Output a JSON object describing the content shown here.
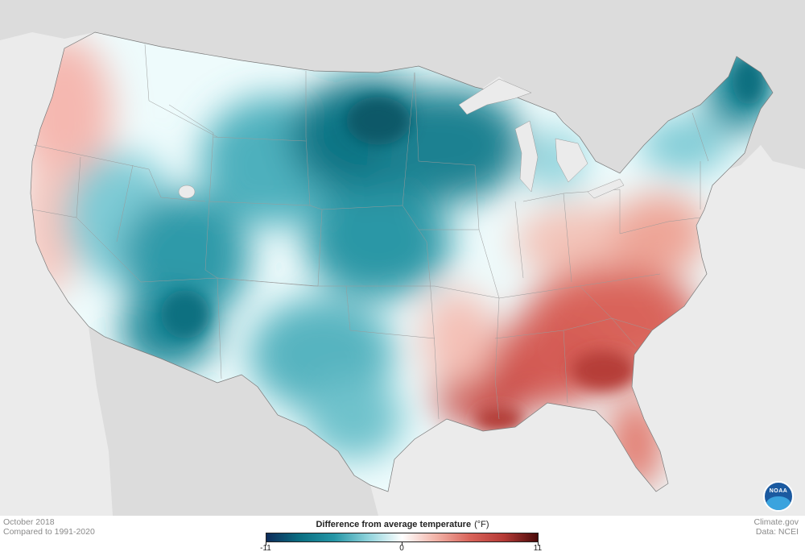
{
  "map": {
    "title": "Difference from average temperature",
    "unit": "(°F)",
    "period": "October 2018",
    "baseline": "Compared to 1991-2020",
    "credit_site": "Climate.gov",
    "credit_data": "Data: NCEI",
    "logo_text": "NOAA",
    "legend": {
      "min": -11,
      "mid": 0,
      "max": 11,
      "min_label": "-11",
      "mid_label": "0",
      "max_label": "11",
      "colors": [
        "#0d2c5a",
        "#0a6f82",
        "#2596a6",
        "#8fd3dc",
        "#ffffff",
        "#f2b3a8",
        "#d9645a",
        "#b53a36",
        "#4a0a0a"
      ]
    },
    "regional_anomalies": [
      {
        "region": "Pacific Northwest",
        "anomaly": 1.5
      },
      {
        "region": "California coast",
        "anomaly": 1.5
      },
      {
        "region": "Great Basin",
        "anomaly": -3
      },
      {
        "region": "Four Corners / Arizona",
        "anomaly": -5
      },
      {
        "region": "Northern Plains",
        "anomaly": -8
      },
      {
        "region": "Upper Midwest",
        "anomaly": -7
      },
      {
        "region": "Central Plains",
        "anomaly": -5
      },
      {
        "region": "Texas",
        "anomaly": -4
      },
      {
        "region": "Michigan",
        "anomaly": -3
      },
      {
        "region": "Maine / New England",
        "anomaly": -5
      },
      {
        "region": "Ohio Valley",
        "anomaly": 2
      },
      {
        "region": "Mid-Atlantic",
        "anomaly": 3
      },
      {
        "region": "Southeast",
        "anomaly": 6
      },
      {
        "region": "Georgia / Carolinas",
        "anomaly": 7
      },
      {
        "region": "Gulf Coast / Louisiana",
        "anomaly": 7
      },
      {
        "region": "Florida",
        "anomaly": 5
      }
    ]
  }
}
